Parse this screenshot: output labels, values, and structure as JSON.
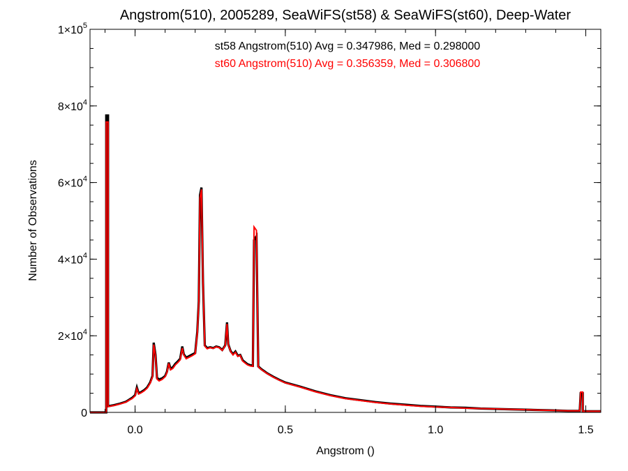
{
  "chart_data": {
    "type": "line",
    "step": true,
    "title": "Angstrom(510), 2005289, SeaWiFS(st58) & SeaWiFS(st60), Deep-Water",
    "xlabel": "Angstrom ()",
    "ylabel": "Number of Observations",
    "xlim": [
      -0.15,
      1.55
    ],
    "ylim": [
      0,
      100000
    ],
    "x_ticks": [
      {
        "value": 0.0,
        "label": "0.0"
      },
      {
        "value": 0.5,
        "label": "0.5"
      },
      {
        "value": 1.0,
        "label": "1.0"
      },
      {
        "value": 1.5,
        "label": "1.5"
      }
    ],
    "y_ticks": [
      {
        "value": 0,
        "mantissa": "0",
        "exponent": ""
      },
      {
        "value": 20000,
        "mantissa": "2×10",
        "exponent": "4"
      },
      {
        "value": 40000,
        "mantissa": "4×10",
        "exponent": "4"
      },
      {
        "value": 60000,
        "mantissa": "6×10",
        "exponent": "4"
      },
      {
        "value": 80000,
        "mantissa": "8×10",
        "exponent": "4"
      },
      {
        "value": 100000,
        "mantissa": "1×10",
        "exponent": "5"
      }
    ],
    "x_minor_step": 0.1,
    "y_minor_step": 5000,
    "grid": false,
    "legend_position": "top-center",
    "annotations": [
      {
        "text": "st58 Angstrom(510) Avg = 0.347986, Med = 0.298000",
        "color": "#000000"
      },
      {
        "text": "st60 Angstrom(510) Avg = 0.356359, Med = 0.306800",
        "color": "#ff0000"
      }
    ],
    "series": [
      {
        "color": "#000000",
        "points": [
          [
            -0.15,
            0
          ],
          [
            -0.096,
            0
          ],
          [
            -0.096,
            77500
          ],
          [
            -0.09,
            77500
          ],
          [
            -0.09,
            1600
          ],
          [
            -0.07,
            1900
          ],
          [
            -0.05,
            2300
          ],
          [
            -0.03,
            2800
          ],
          [
            -0.02,
            3300
          ],
          [
            -0.01,
            3800
          ],
          [
            0.0,
            4500
          ],
          [
            0.006,
            6500
          ],
          [
            0.012,
            5000
          ],
          [
            0.02,
            5300
          ],
          [
            0.03,
            5800
          ],
          [
            0.04,
            6500
          ],
          [
            0.05,
            7800
          ],
          [
            0.058,
            9500
          ],
          [
            0.062,
            18200
          ],
          [
            0.068,
            15000
          ],
          [
            0.073,
            9000
          ],
          [
            0.08,
            8600
          ],
          [
            0.09,
            8900
          ],
          [
            0.1,
            9500
          ],
          [
            0.106,
            10600
          ],
          [
            0.112,
            13000
          ],
          [
            0.118,
            11400
          ],
          [
            0.126,
            11800
          ],
          [
            0.134,
            12700
          ],
          [
            0.142,
            13300
          ],
          [
            0.15,
            14000
          ],
          [
            0.157,
            17200
          ],
          [
            0.162,
            15200
          ],
          [
            0.17,
            14300
          ],
          [
            0.18,
            14700
          ],
          [
            0.19,
            15100
          ],
          [
            0.2,
            15500
          ],
          [
            0.207,
            21000
          ],
          [
            0.212,
            29000
          ],
          [
            0.216,
            56700
          ],
          [
            0.221,
            58700
          ],
          [
            0.226,
            34000
          ],
          [
            0.232,
            17500
          ],
          [
            0.24,
            16800
          ],
          [
            0.25,
            17000
          ],
          [
            0.26,
            16800
          ],
          [
            0.27,
            17200
          ],
          [
            0.28,
            17000
          ],
          [
            0.29,
            16300
          ],
          [
            0.3,
            17500
          ],
          [
            0.306,
            23500
          ],
          [
            0.31,
            17800
          ],
          [
            0.318,
            16000
          ],
          [
            0.326,
            15200
          ],
          [
            0.334,
            15900
          ],
          [
            0.342,
            14800
          ],
          [
            0.35,
            15000
          ],
          [
            0.358,
            13600
          ],
          [
            0.366,
            13100
          ],
          [
            0.374,
            12600
          ],
          [
            0.384,
            12300
          ],
          [
            0.392,
            12200
          ],
          [
            0.396,
            45000
          ],
          [
            0.404,
            46000
          ],
          [
            0.41,
            12000
          ],
          [
            0.42,
            11300
          ],
          [
            0.44,
            10200
          ],
          [
            0.46,
            9300
          ],
          [
            0.48,
            8500
          ],
          [
            0.5,
            7800
          ],
          [
            0.55,
            6700
          ],
          [
            0.6,
            5500
          ],
          [
            0.65,
            4500
          ],
          [
            0.7,
            3700
          ],
          [
            0.75,
            3200
          ],
          [
            0.8,
            2700
          ],
          [
            0.85,
            2300
          ],
          [
            0.9,
            2000
          ],
          [
            0.95,
            1700
          ],
          [
            1.0,
            1500
          ],
          [
            1.05,
            1300
          ],
          [
            1.1,
            1200
          ],
          [
            1.15,
            1000
          ],
          [
            1.2,
            900
          ],
          [
            1.25,
            800
          ],
          [
            1.3,
            700
          ],
          [
            1.35,
            600
          ],
          [
            1.4,
            500
          ],
          [
            1.44,
            400
          ],
          [
            1.48,
            400
          ],
          [
            1.483,
            5000
          ],
          [
            1.49,
            5000
          ],
          [
            1.49,
            300
          ],
          [
            1.55,
            300
          ]
        ]
      },
      {
        "color": "#ff0000",
        "points": [
          [
            -0.15,
            0
          ],
          [
            -0.096,
            0
          ],
          [
            -0.096,
            75800
          ],
          [
            -0.09,
            75800
          ],
          [
            -0.09,
            1500
          ],
          [
            -0.07,
            1800
          ],
          [
            -0.05,
            2200
          ],
          [
            -0.03,
            2700
          ],
          [
            -0.02,
            3200
          ],
          [
            -0.01,
            3600
          ],
          [
            0.0,
            4300
          ],
          [
            0.006,
            6200
          ],
          [
            0.012,
            4800
          ],
          [
            0.02,
            5100
          ],
          [
            0.03,
            5600
          ],
          [
            0.04,
            6300
          ],
          [
            0.05,
            7600
          ],
          [
            0.058,
            9300
          ],
          [
            0.062,
            17700
          ],
          [
            0.068,
            14700
          ],
          [
            0.073,
            8700
          ],
          [
            0.08,
            8200
          ],
          [
            0.09,
            8600
          ],
          [
            0.1,
            9300
          ],
          [
            0.106,
            10400
          ],
          [
            0.112,
            12800
          ],
          [
            0.118,
            11100
          ],
          [
            0.126,
            11500
          ],
          [
            0.134,
            12400
          ],
          [
            0.142,
            13000
          ],
          [
            0.15,
            13700
          ],
          [
            0.157,
            16800
          ],
          [
            0.162,
            15000
          ],
          [
            0.17,
            14000
          ],
          [
            0.18,
            14400
          ],
          [
            0.19,
            14800
          ],
          [
            0.2,
            15300
          ],
          [
            0.207,
            20600
          ],
          [
            0.212,
            28800
          ],
          [
            0.216,
            56000
          ],
          [
            0.221,
            58200
          ],
          [
            0.226,
            34300
          ],
          [
            0.232,
            17300
          ],
          [
            0.24,
            16600
          ],
          [
            0.25,
            16900
          ],
          [
            0.26,
            16700
          ],
          [
            0.27,
            17100
          ],
          [
            0.28,
            16900
          ],
          [
            0.29,
            16200
          ],
          [
            0.3,
            17400
          ],
          [
            0.306,
            23100
          ],
          [
            0.31,
            17700
          ],
          [
            0.318,
            15900
          ],
          [
            0.326,
            15000
          ],
          [
            0.334,
            15700
          ],
          [
            0.342,
            14600
          ],
          [
            0.35,
            14900
          ],
          [
            0.358,
            13400
          ],
          [
            0.366,
            12900
          ],
          [
            0.374,
            12400
          ],
          [
            0.384,
            12100
          ],
          [
            0.392,
            12000
          ],
          [
            0.396,
            48400
          ],
          [
            0.404,
            47500
          ],
          [
            0.41,
            11900
          ],
          [
            0.42,
            11200
          ],
          [
            0.44,
            10100
          ],
          [
            0.46,
            9200
          ],
          [
            0.48,
            8400
          ],
          [
            0.5,
            7700
          ],
          [
            0.55,
            6600
          ],
          [
            0.6,
            5400
          ],
          [
            0.65,
            4400
          ],
          [
            0.7,
            3600
          ],
          [
            0.75,
            3100
          ],
          [
            0.8,
            2600
          ],
          [
            0.85,
            2200
          ],
          [
            0.9,
            1900
          ],
          [
            0.95,
            1600
          ],
          [
            1.0,
            1400
          ],
          [
            1.05,
            1300
          ],
          [
            1.1,
            1100
          ],
          [
            1.15,
            1000
          ],
          [
            1.2,
            900
          ],
          [
            1.25,
            800
          ],
          [
            1.3,
            700
          ],
          [
            1.35,
            600
          ],
          [
            1.4,
            500
          ],
          [
            1.44,
            400
          ],
          [
            1.48,
            400
          ],
          [
            1.483,
            5300
          ],
          [
            1.49,
            5300
          ],
          [
            1.49,
            300
          ],
          [
            1.55,
            300
          ]
        ]
      }
    ]
  }
}
